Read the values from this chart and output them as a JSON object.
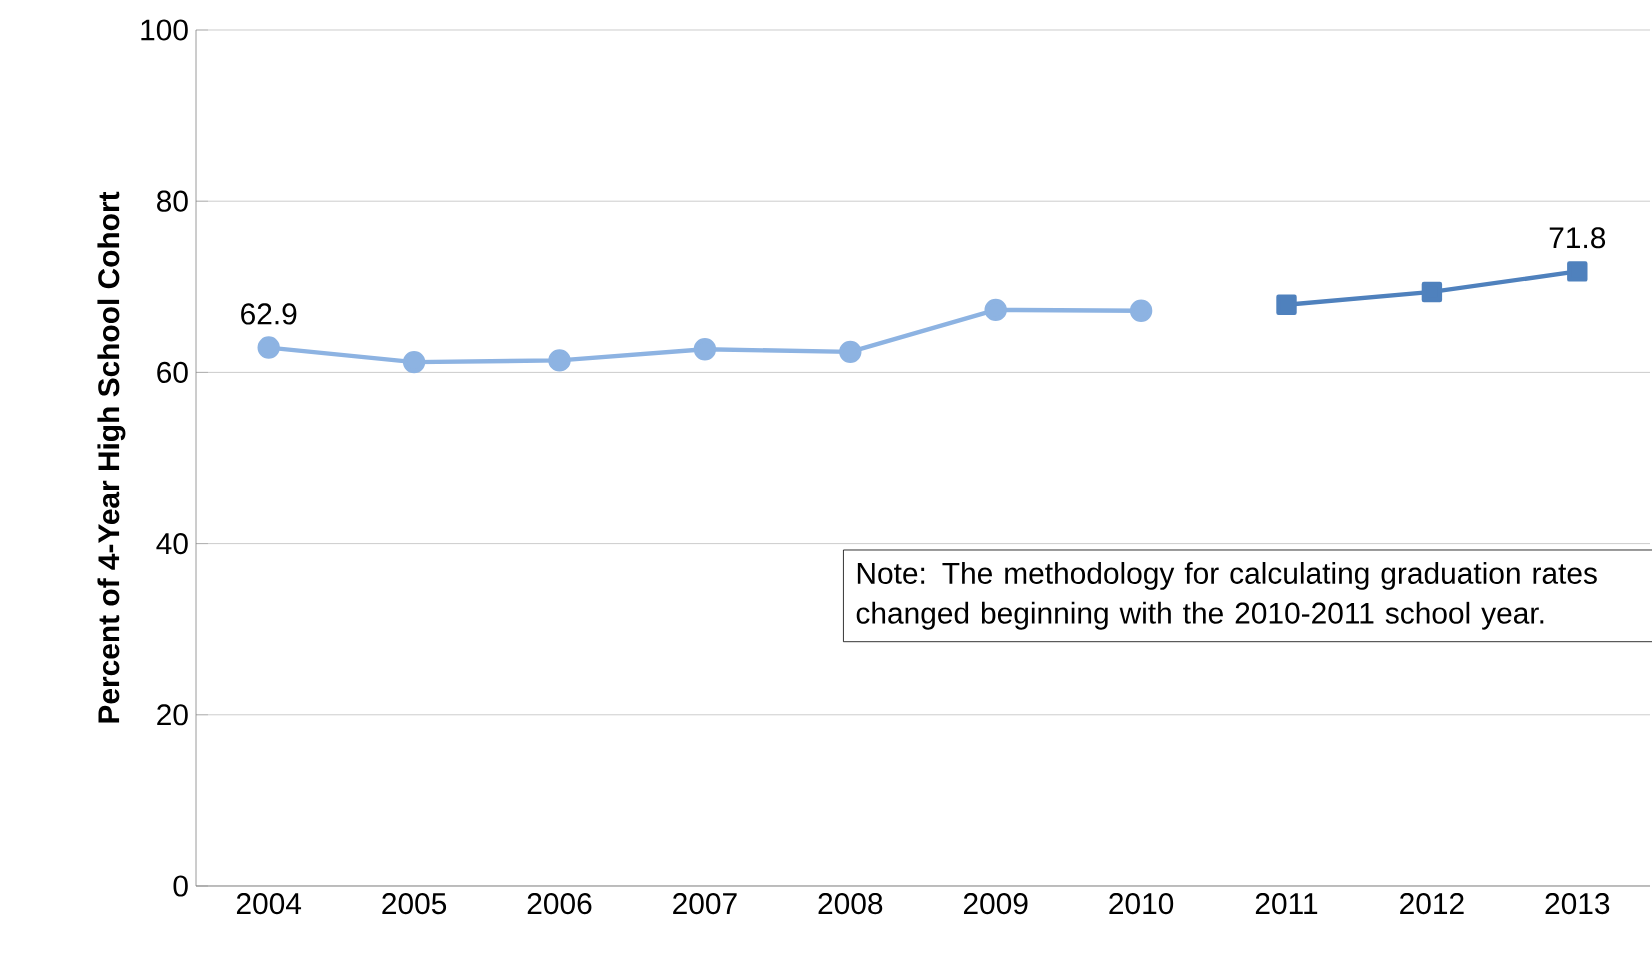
{
  "chart_data": {
    "type": "line",
    "ylabel": "Percent of 4-Year High School Cohort",
    "categories": [
      "2004",
      "2005",
      "2006",
      "2007",
      "2008",
      "2009",
      "2010",
      "2011",
      "2012",
      "2013"
    ],
    "series": [
      {
        "color": "#8db3e2",
        "marker": "circle",
        "values": [
          62.9,
          61.2,
          61.4,
          62.7,
          62.4,
          67.3,
          67.2,
          null,
          null,
          null
        ],
        "value_labels": [
          "62.9",
          null,
          null,
          null,
          null,
          null,
          null,
          null,
          null,
          null
        ]
      },
      {
        "color": "#4f81bd",
        "marker": "square",
        "values": [
          null,
          null,
          null,
          null,
          null,
          null,
          null,
          67.9,
          69.4,
          71.8
        ],
        "value_labels": [
          null,
          null,
          null,
          null,
          null,
          null,
          null,
          null,
          null,
          "71.8"
        ]
      }
    ],
    "ylim": [
      0,
      100
    ],
    "yticks": [
      0,
      20,
      40,
      60,
      80,
      100
    ],
    "grid": "y",
    "annotations": [
      "Note:  The methodology for calculating graduation rates changed beginning with the 2010-2011 school year."
    ]
  }
}
